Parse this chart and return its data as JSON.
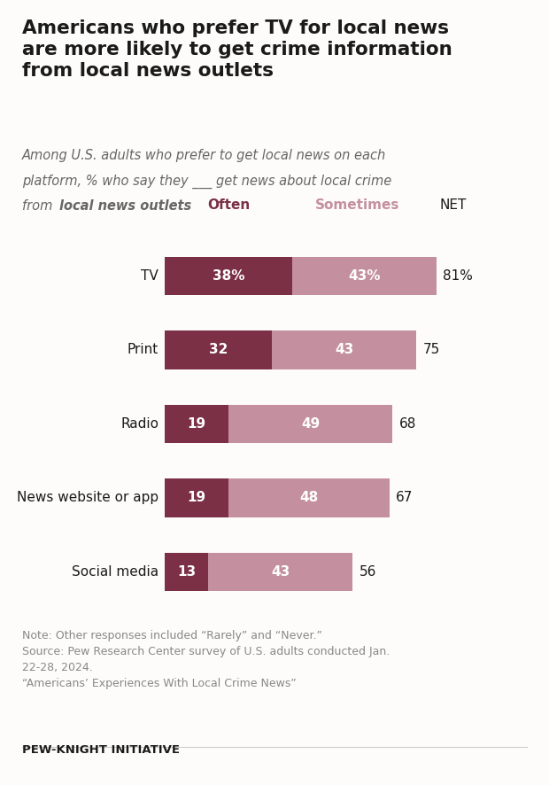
{
  "title": "Americans who prefer TV for local news\nare more likely to get crime information\nfrom local news outlets",
  "subtitle_line1": "Among U.S. adults who prefer to get local news on each",
  "subtitle_line2": "platform, % who say they ___ get news about local crime",
  "subtitle_line3_plain": "from ",
  "subtitle_line3_bold": "local news outlets",
  "categories": [
    "TV",
    "Print",
    "Radio",
    "News website or app",
    "Social media"
  ],
  "often_values": [
    38,
    32,
    19,
    19,
    13
  ],
  "sometimes_values": [
    43,
    43,
    49,
    48,
    43
  ],
  "net_values": [
    "81%",
    "75",
    "68",
    "67",
    "56"
  ],
  "often_label": "Often",
  "sometimes_label": "Sometimes",
  "net_label": "NET",
  "often_color": "#7b3045",
  "sometimes_color": "#c4909f",
  "bar_height": 0.52,
  "note_text": "Note: Other responses included “Rarely” and “Never.”\nSource: Pew Research Center survey of U.S. adults conducted Jan.\n22-28, 2024.\n“Americans’ Experiences With Local Crime News”",
  "footer_text": "PEW-KNIGHT INITIATIVE",
  "background_color": "#fdfcfa",
  "text_color": "#1a1a1a",
  "subtitle_color": "#666666",
  "note_color": "#888888",
  "often_header_color": "#7b3045",
  "sometimes_header_color": "#c4909f"
}
